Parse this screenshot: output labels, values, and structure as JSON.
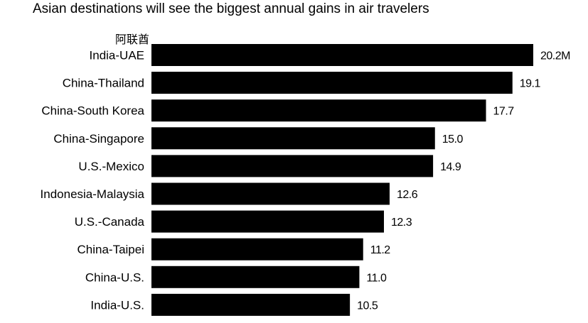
{
  "title": "Asian destinations will see the biggest annual gains in air travelers",
  "annotation": "阿联酋",
  "chart_data": {
    "type": "bar",
    "orientation": "horizontal",
    "categories": [
      "India-UAE",
      "China-Thailand",
      "China-South Korea",
      "China-Singapore",
      "U.S.-Mexico",
      "Indonesia-Malaysia",
      "U.S.-Canada",
      "China-Taipei",
      "China-U.S.",
      "India-U.S."
    ],
    "values": [
      20.2,
      19.1,
      17.7,
      15.0,
      14.9,
      12.6,
      12.3,
      11.2,
      11.0,
      10.5
    ],
    "value_labels": [
      "20.2M",
      "19.1",
      "17.7",
      "15.0",
      "14.9",
      "12.6",
      "12.3",
      "11.2",
      "11.0",
      "10.5"
    ],
    "bar_color": "#000000",
    "xlim": [
      0,
      20.2
    ],
    "grid": false,
    "legend": "none"
  }
}
